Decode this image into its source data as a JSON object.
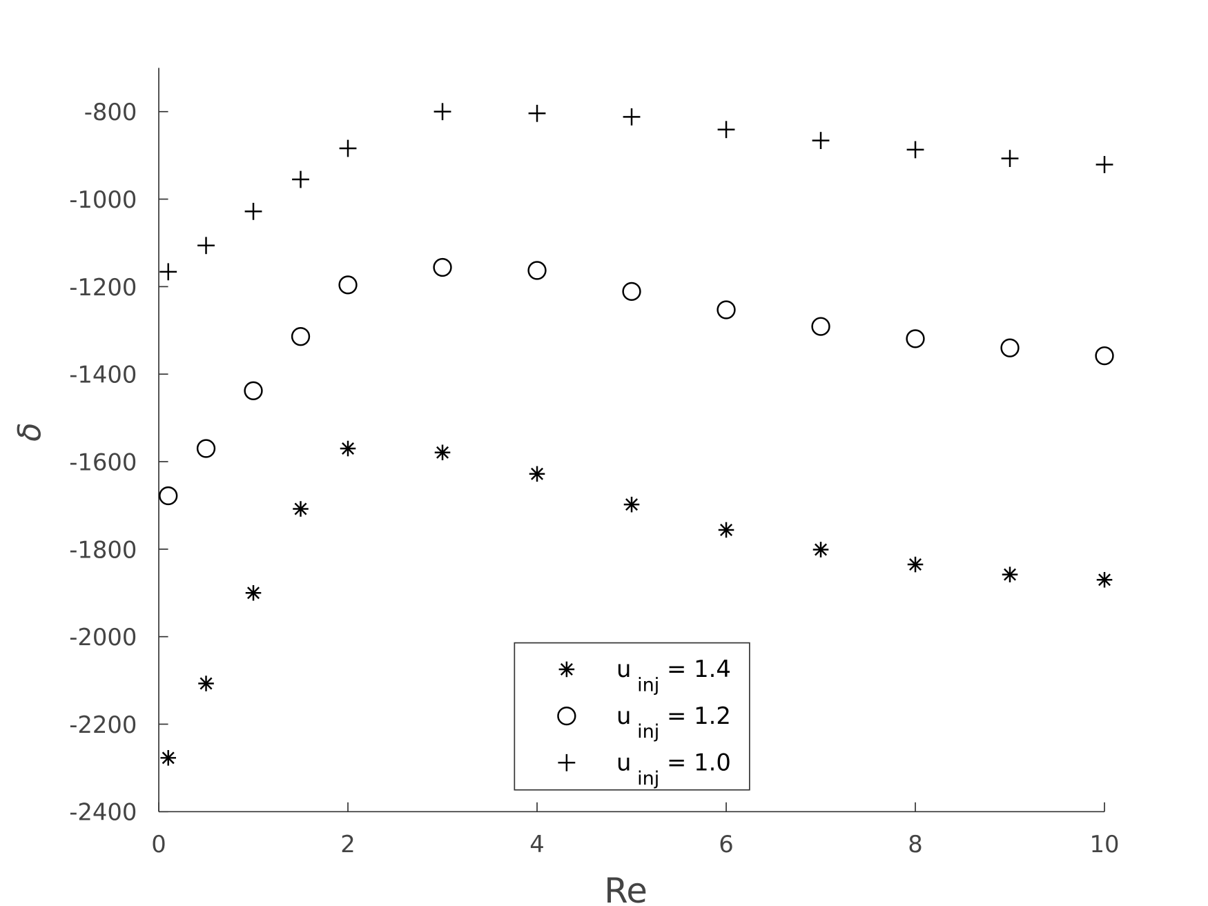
{
  "chart_data": {
    "type": "scatter",
    "x_label": "Re",
    "y_label": "δ",
    "x": [
      0.1,
      0.5,
      1,
      1.5,
      2,
      3,
      4,
      5,
      6,
      7,
      8,
      9,
      10
    ],
    "series": [
      {
        "name": "u inj = 1.4",
        "marker": "star",
        "color": "#000000",
        "values": [
          -2277,
          -2107,
          -1900,
          -1708,
          -1570,
          -1579,
          -1628,
          -1698,
          -1756,
          -1801,
          -1835,
          -1858,
          -1870
        ]
      },
      {
        "name": "u inj = 1.2",
        "marker": "circle",
        "color": "#000000",
        "values": [
          -1678,
          -1570,
          -1438,
          -1314,
          -1196,
          -1156,
          -1163,
          -1211,
          -1253,
          -1291,
          -1319,
          -1340,
          -1358
        ]
      },
      {
        "name": "u inj = 1.0",
        "marker": "plus",
        "color": "#000000",
        "values": [
          -1166,
          -1106,
          -1028,
          -955,
          -884,
          -800,
          -804,
          -812,
          -841,
          -866,
          -887,
          -907,
          -921
        ]
      }
    ],
    "xlim": [
      0,
      10
    ],
    "xticks": [
      0,
      2,
      4,
      6,
      8,
      10
    ],
    "ylim": [
      -2400,
      -700
    ],
    "yticks": [
      -2400,
      -2200,
      -2000,
      -1800,
      -1600,
      -1400,
      -1200,
      -1000,
      -800
    ],
    "grid": false,
    "legend": "bottom"
  }
}
